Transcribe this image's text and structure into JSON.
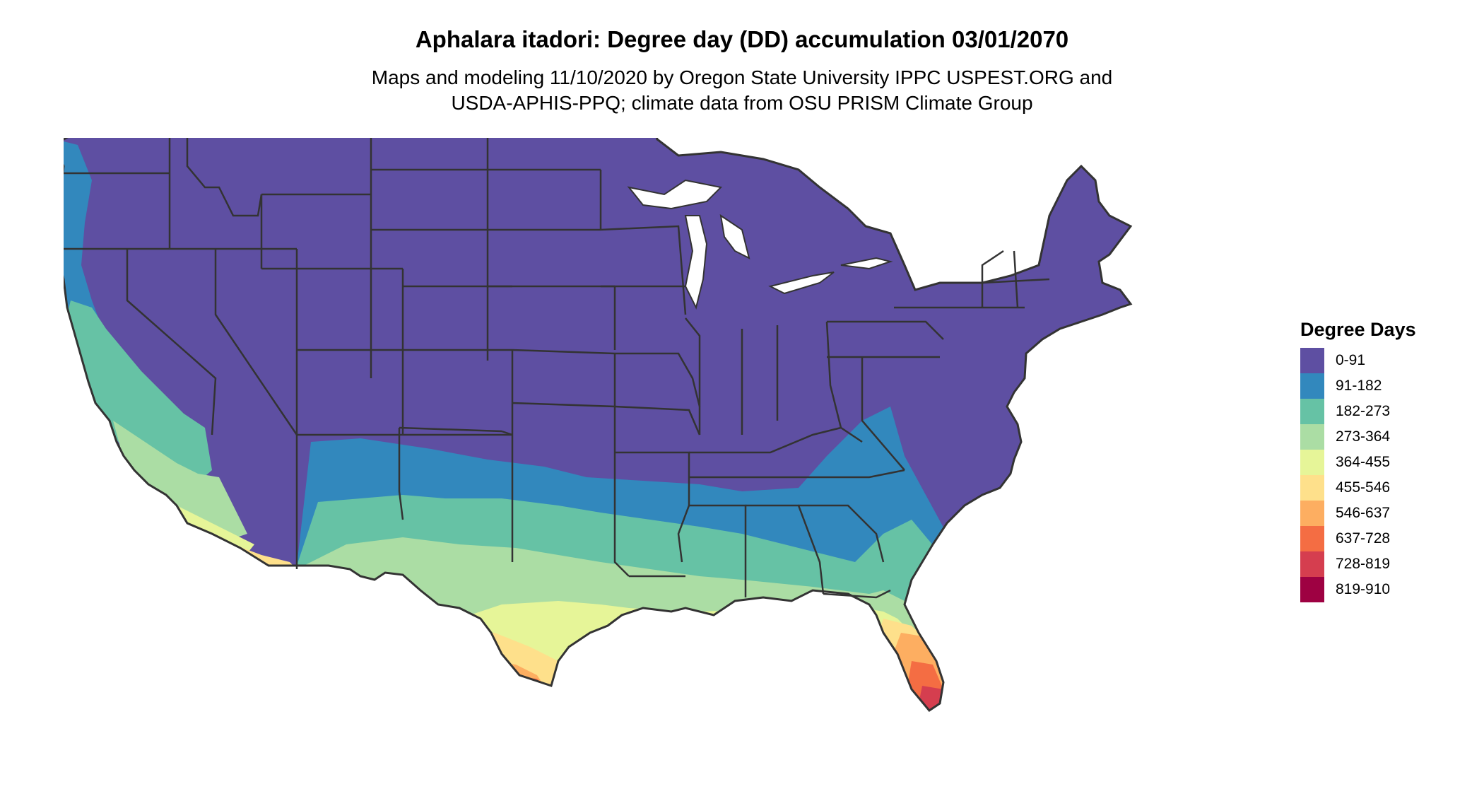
{
  "header": {
    "title": "Aphalara itadori: Degree day (DD) accumulation 03/01/2070",
    "subtitle_line1": "Maps and modeling 11/10/2020 by Oregon State University IPPC USPEST.ORG and",
    "subtitle_line2": "USDA-APHIS-PPQ; climate data from OSU PRISM Climate Group"
  },
  "legend": {
    "title": "Degree Days",
    "items": [
      {
        "label": "0-91",
        "color": "#5E4FA2"
      },
      {
        "label": "91-182",
        "color": "#3288BD"
      },
      {
        "label": "182-273",
        "color": "#66C2A5"
      },
      {
        "label": "273-364",
        "color": "#ABDDA4"
      },
      {
        "label": "364-455",
        "color": "#E6F598"
      },
      {
        "label": "455-546",
        "color": "#FEE08B"
      },
      {
        "label": "546-637",
        "color": "#FDAE61"
      },
      {
        "label": "637-728",
        "color": "#F46D43"
      },
      {
        "label": "728-819",
        "color": "#D53E4F"
      },
      {
        "label": "819-910",
        "color": "#9E0142"
      }
    ]
  },
  "map": {
    "region": "Contiguous United States",
    "border_color": "#333333"
  }
}
